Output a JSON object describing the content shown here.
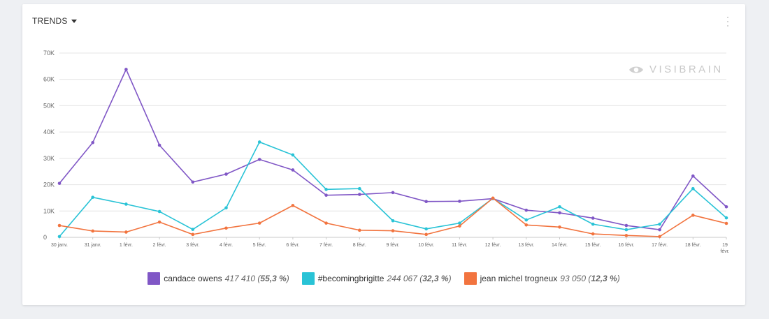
{
  "widget": {
    "title": "TRENDS",
    "watermark": "VISIBRAIN",
    "menu_icon": "more-vertical-icon",
    "caret_icon": "caret-down-icon"
  },
  "chart_data": {
    "type": "line",
    "title": "",
    "xlabel": "",
    "ylabel": "",
    "ylim": [
      0,
      70000
    ],
    "yticks": [
      "0",
      "10K",
      "20K",
      "30K",
      "40K",
      "50K",
      "60K",
      "70K"
    ],
    "grid": true,
    "legend_position": "bottom",
    "categories": [
      "30 janv.",
      "31 janv.",
      "1 févr.",
      "2 févr.",
      "3 févr.",
      "4 févr.",
      "5 févr.",
      "6 févr.",
      "7 févr.",
      "8 févr.",
      "9 févr.",
      "10 févr.",
      "11 févr.",
      "12 févr.",
      "13 févr.",
      "14 févr.",
      "15 févr.",
      "16 févr.",
      "17 févr.",
      "18 févr.",
      "19 févr."
    ],
    "series": [
      {
        "name": "candace owens",
        "color": "#8057c6",
        "total": "417 410",
        "pct": "55,3 %",
        "values": [
          20500,
          36000,
          63800,
          35000,
          21000,
          24000,
          29600,
          25600,
          16000,
          16300,
          17000,
          13600,
          13700,
          14700,
          10300,
          9300,
          7300,
          4500,
          2900,
          23300,
          11600
        ]
      },
      {
        "name": "#becomingbrigitte",
        "color": "#29c3d6",
        "total": "244 067",
        "pct": "32,3 %",
        "values": [
          300,
          15200,
          12600,
          9800,
          3000,
          11200,
          36200,
          31300,
          18200,
          18500,
          6300,
          3200,
          5400,
          14800,
          6600,
          11600,
          5000,
          2900,
          5000,
          18500,
          7400
        ]
      },
      {
        "name": "jean michel trogneux",
        "color": "#f2743f",
        "total": "93 050",
        "pct": "12,3 %",
        "values": [
          4500,
          2400,
          2000,
          5800,
          1100,
          3500,
          5400,
          12100,
          5400,
          2700,
          2500,
          1100,
          4300,
          14900,
          4700,
          3900,
          1300,
          700,
          300,
          8400,
          5300
        ]
      }
    ]
  }
}
